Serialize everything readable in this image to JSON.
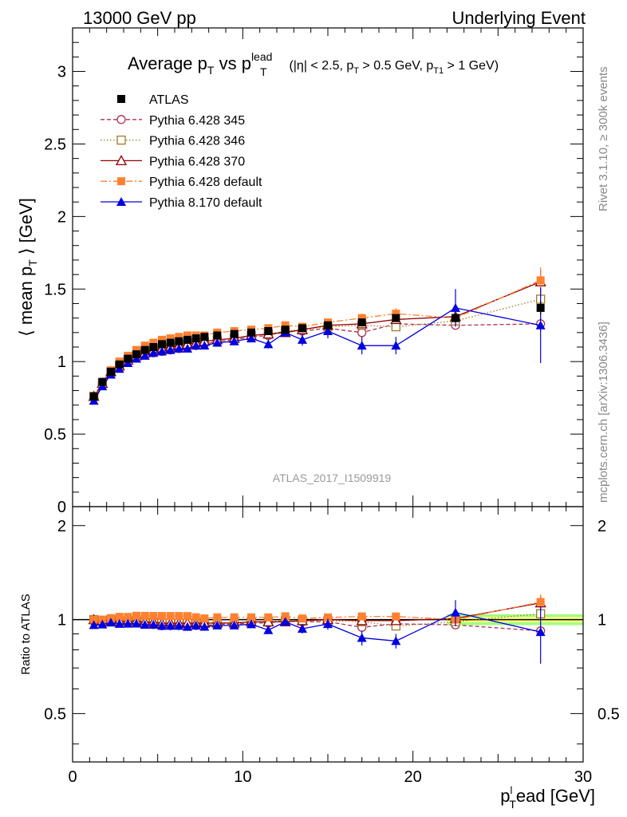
{
  "header": {
    "left": "13000 GeV pp",
    "right": "Underlying Event"
  },
  "title": {
    "prefix": "Average p",
    "sub_T": "T",
    "vs": " vs p",
    "sup_lead": "lead",
    "sub_T2": "T",
    "cuts_a": " (|η| < 2.5, p",
    "cuts_b": " > 0.5 GeV, p",
    "cuts_sub_T1": "T1",
    "cuts_c": " > 1 GeV)"
  },
  "ylabel": {
    "main": "⟨ mean p",
    "sub": "T",
    "tail": " ⟩ [GeV]"
  },
  "ratio_ylabel": "Ratio to ATLAS",
  "xlabel": {
    "p": "p",
    "sup": "l",
    "sub": "T",
    "tail": "ead [GeV]"
  },
  "side_text_top": "Rivet 3.1.10, ≥ 300k events",
  "side_text_bottom": "mcplots.cern.ch [arXiv:1306.3436]",
  "watermark": "ATLAS_2017_I1509919",
  "colors": {
    "atlas": "#000000",
    "p345": "#b03050",
    "p346": "#a07828",
    "p370": "#900000",
    "p6def": "#ff8030",
    "p8def": "#0000e0",
    "band_inner": "#ffff80",
    "band_outer": "#a0ff80"
  },
  "chart_data": {
    "type": "scatter",
    "x": [
      1.25,
      1.75,
      2.25,
      2.75,
      3.25,
      3.75,
      4.25,
      4.75,
      5.25,
      5.75,
      6.25,
      6.75,
      7.25,
      7.75,
      8.5,
      9.5,
      10.5,
      11.5,
      12.5,
      13.5,
      15,
      17,
      19,
      22.5,
      27.5
    ],
    "xlim": [
      0,
      30
    ],
    "xticks": [
      0,
      10,
      20,
      30
    ],
    "xtick_labels": [
      "0",
      "10",
      "20",
      "30"
    ],
    "main": {
      "ylim": [
        0,
        3.3
      ],
      "yticks": [
        0,
        0.5,
        1,
        1.5,
        2,
        2.5,
        3
      ],
      "ytick_labels": [
        "0",
        "0.5",
        "1",
        "1.5",
        "2",
        "2.5",
        "3"
      ]
    },
    "ratio": {
      "ylim": [
        0.35,
        2.3
      ],
      "yticks": [
        0.5,
        1,
        2
      ],
      "ytick_labels": [
        "0.5",
        "1",
        "2"
      ],
      "band_x": [
        22,
        30
      ],
      "band_inner": [
        0.98,
        1.02
      ],
      "band_outer": [
        0.96,
        1.04
      ]
    },
    "series": [
      {
        "name": "ATLAS",
        "key": "atlas",
        "marker": "square-filled",
        "line": "none",
        "values": [
          0.76,
          0.86,
          0.93,
          0.98,
          1.02,
          1.05,
          1.08,
          1.1,
          1.12,
          1.13,
          1.14,
          1.15,
          1.16,
          1.17,
          1.18,
          1.19,
          1.2,
          1.21,
          1.22,
          1.23,
          1.25,
          1.27,
          1.3,
          1.3,
          1.37
        ],
        "err": [
          0.01,
          0.01,
          0.01,
          0.01,
          0.01,
          0.01,
          0.01,
          0.01,
          0.01,
          0.01,
          0.01,
          0.01,
          0.01,
          0.01,
          0.01,
          0.01,
          0.01,
          0.01,
          0.01,
          0.01,
          0.02,
          0.02,
          0.02,
          0.03,
          0.05
        ]
      },
      {
        "name": "Pythia 6.428 345",
        "key": "p345",
        "marker": "circle-open",
        "line": "dashed",
        "values": [
          0.75,
          0.84,
          0.92,
          0.96,
          1.0,
          1.03,
          1.05,
          1.06,
          1.07,
          1.08,
          1.09,
          1.1,
          1.11,
          1.12,
          1.14,
          1.15,
          1.17,
          1.18,
          1.21,
          1.21,
          1.23,
          1.2,
          1.26,
          1.25,
          1.26
        ],
        "err": [
          0.01,
          0.01,
          0.01,
          0.01,
          0.01,
          0.01,
          0.01,
          0.01,
          0.01,
          0.01,
          0.01,
          0.01,
          0.01,
          0.01,
          0.01,
          0.01,
          0.01,
          0.01,
          0.01,
          0.02,
          0.02,
          0.02,
          0.03,
          0.03,
          0.05
        ]
      },
      {
        "name": "Pythia 6.428 346",
        "key": "p346",
        "marker": "square-open",
        "line": "dotted",
        "values": [
          0.76,
          0.85,
          0.93,
          0.97,
          1.01,
          1.04,
          1.06,
          1.08,
          1.09,
          1.1,
          1.11,
          1.12,
          1.13,
          1.14,
          1.15,
          1.16,
          1.18,
          1.19,
          1.21,
          1.22,
          1.24,
          1.25,
          1.24,
          1.28,
          1.43
        ],
        "err": [
          0.01,
          0.01,
          0.01,
          0.01,
          0.01,
          0.01,
          0.01,
          0.01,
          0.01,
          0.01,
          0.01,
          0.01,
          0.01,
          0.01,
          0.01,
          0.01,
          0.01,
          0.01,
          0.01,
          0.02,
          0.02,
          0.02,
          0.03,
          0.03,
          0.06
        ]
      },
      {
        "name": "Pythia 6.428 370",
        "key": "p370",
        "marker": "triangle-open",
        "line": "solid",
        "values": [
          0.76,
          0.85,
          0.93,
          0.97,
          1.01,
          1.04,
          1.06,
          1.08,
          1.09,
          1.1,
          1.11,
          1.12,
          1.13,
          1.14,
          1.15,
          1.16,
          1.18,
          1.19,
          1.2,
          1.22,
          1.25,
          1.26,
          1.29,
          1.31,
          1.55
        ],
        "err": [
          0.01,
          0.01,
          0.01,
          0.01,
          0.01,
          0.01,
          0.01,
          0.01,
          0.01,
          0.01,
          0.01,
          0.01,
          0.01,
          0.01,
          0.01,
          0.01,
          0.01,
          0.01,
          0.01,
          0.02,
          0.02,
          0.02,
          0.03,
          0.04,
          0.08
        ]
      },
      {
        "name": "Pythia 6.428 default",
        "key": "p6def",
        "marker": "square-filled",
        "line": "dashdot",
        "values": [
          0.76,
          0.86,
          0.94,
          1.0,
          1.04,
          1.08,
          1.11,
          1.13,
          1.15,
          1.16,
          1.17,
          1.18,
          1.18,
          1.18,
          1.2,
          1.21,
          1.22,
          1.23,
          1.25,
          1.24,
          1.27,
          1.3,
          1.33,
          1.3,
          1.56
        ],
        "err": [
          0.01,
          0.01,
          0.01,
          0.01,
          0.01,
          0.01,
          0.01,
          0.01,
          0.01,
          0.01,
          0.01,
          0.01,
          0.01,
          0.01,
          0.01,
          0.01,
          0.01,
          0.01,
          0.01,
          0.02,
          0.02,
          0.03,
          0.04,
          0.05,
          0.09
        ]
      },
      {
        "name": "Pythia 8.170 default",
        "key": "p8def",
        "marker": "triangle-filled",
        "line": "solid",
        "values": [
          0.73,
          0.83,
          0.91,
          0.95,
          0.99,
          1.02,
          1.04,
          1.06,
          1.07,
          1.08,
          1.09,
          1.09,
          1.11,
          1.11,
          1.13,
          1.14,
          1.16,
          1.12,
          1.2,
          1.15,
          1.21,
          1.11,
          1.11,
          1.37,
          1.25
        ],
        "err": [
          0.01,
          0.01,
          0.01,
          0.01,
          0.01,
          0.01,
          0.01,
          0.01,
          0.01,
          0.01,
          0.01,
          0.01,
          0.01,
          0.01,
          0.02,
          0.02,
          0.02,
          0.03,
          0.03,
          0.04,
          0.05,
          0.06,
          0.06,
          0.13,
          0.26
        ]
      }
    ]
  }
}
